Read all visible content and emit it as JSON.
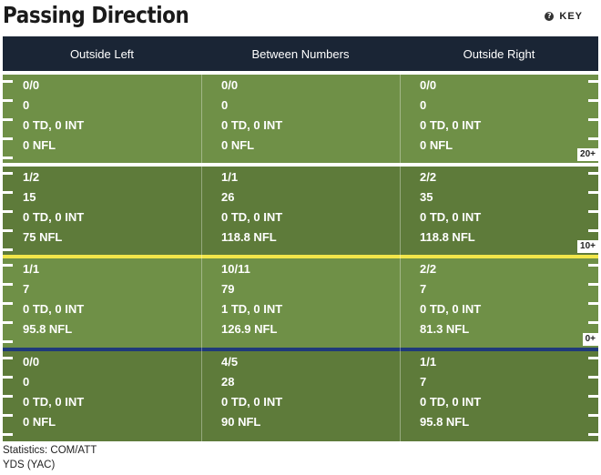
{
  "title": "Passing Direction",
  "key": {
    "icon": "help-circle-icon",
    "label": "KEY"
  },
  "columns": [
    "Outside Left",
    "Between Numbers",
    "Outside Right"
  ],
  "zones": [
    {
      "marker": "20+",
      "line_color": "#ffffff",
      "cells": [
        [
          "0/0",
          "0",
          "0 TD, 0 INT",
          "0 NFL"
        ],
        [
          "0/0",
          "0",
          "0 TD, 0 INT",
          "0 NFL"
        ],
        [
          "0/0",
          "0",
          "0 TD, 0 INT",
          "0 NFL"
        ]
      ]
    },
    {
      "marker": "10+",
      "line_color": "#f2e64a",
      "cells": [
        [
          "1/2",
          "15",
          "0 TD, 0 INT",
          "75 NFL"
        ],
        [
          "1/1",
          "26",
          "0 TD, 0 INT",
          "118.8 NFL"
        ],
        [
          "2/2",
          "35",
          "0 TD, 0 INT",
          "118.8 NFL"
        ]
      ]
    },
    {
      "marker": "0+",
      "line_color": "#1f3a7a",
      "cells": [
        [
          "1/1",
          "7",
          "0 TD, 0 INT",
          "95.8 NFL"
        ],
        [
          "10/11",
          "79",
          "1 TD, 0 INT",
          "126.9 NFL"
        ],
        [
          "2/2",
          "7",
          "0 TD, 0 INT",
          "81.3 NFL"
        ]
      ]
    },
    {
      "marker": "",
      "line_color": "",
      "cells": [
        [
          "0/0",
          "0",
          "0 TD, 0 INT",
          "0 NFL"
        ],
        [
          "4/5",
          "28",
          "0 TD, 0 INT",
          "90 NFL"
        ],
        [
          "1/1",
          "7",
          "0 TD, 0 INT",
          "95.8 NFL"
        ]
      ]
    }
  ],
  "footer": [
    "Statistics: COM/ATT",
    "YDS (YAC)"
  ],
  "colors": {
    "header_bg": "#1a2535",
    "field_light": "#6f9047",
    "field_dark": "#5e7b3a",
    "line_20": "#ffffff",
    "line_10": "#f2e64a",
    "line_0": "#1f3a7a"
  }
}
